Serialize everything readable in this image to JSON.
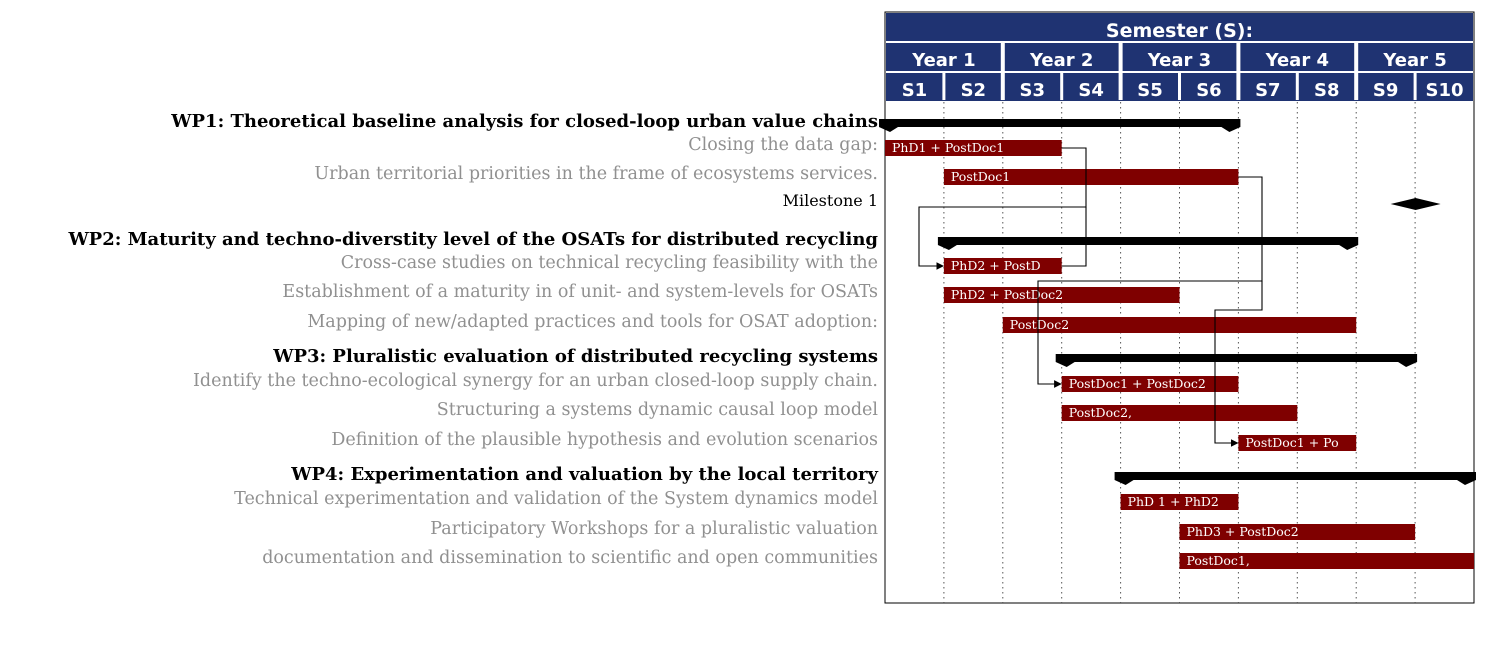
{
  "chart_data": {
    "type": "gantt",
    "title": "Semester (S):",
    "years": [
      "Year 1",
      "Year 2",
      "Year 3",
      "Year 4",
      "Year 5"
    ],
    "semesters": [
      "S1",
      "S2",
      "S3",
      "S4",
      "S5",
      "S6",
      "S7",
      "S8",
      "S9",
      "S10"
    ],
    "rows": [
      {
        "kind": "group",
        "label": "WP1: Theoretical baseline analysis for closed-loop urban value chains",
        "start": 1,
        "end": 6
      },
      {
        "kind": "task",
        "label": "Closing the data gap:",
        "start": 1,
        "end": 3,
        "bar_text": "PhD1 + PostDoc1"
      },
      {
        "kind": "task",
        "label": "Urban territorial priorities in the frame of ecosystems services.",
        "start": 2,
        "end": 6,
        "bar_text": "PostDoc1"
      },
      {
        "kind": "milestone",
        "label": "Milestone 1",
        "at": 10
      },
      {
        "kind": "group",
        "label": "WP2: Maturity and techno-diverstity level of the OSATs for distributed recycling",
        "start": 2,
        "end": 8
      },
      {
        "kind": "task",
        "label": "Cross-case studies on technical recycling feasibility with the",
        "start": 2,
        "end": 3,
        "bar_text": "PhD2 + PostD"
      },
      {
        "kind": "task",
        "label": "Establishment of a maturity in of unit- and system-levels for OSATs",
        "start": 2,
        "end": 5,
        "bar_text": "PhD2 + PostDoc2"
      },
      {
        "kind": "task",
        "label": "Mapping of new/adapted practices and tools for OSAT adoption:",
        "start": 3,
        "end": 8,
        "bar_text": "PostDoc2"
      },
      {
        "kind": "group",
        "label": "WP3: Pluralistic evaluation of distributed recycling systems",
        "start": 4,
        "end": 9
      },
      {
        "kind": "task",
        "label": "Identify the techno-ecological synergy for an urban closed-loop supply chain.",
        "start": 4,
        "end": 6,
        "bar_text": "PostDoc1 + PostDoc2"
      },
      {
        "kind": "task",
        "label": "Structuring a systems dynamic causal loop model",
        "start": 4,
        "end": 7,
        "bar_text": "PostDoc2,"
      },
      {
        "kind": "task",
        "label": "Definition of the plausible hypothesis and evolution scenarios",
        "start": 7,
        "end": 8,
        "bar_text": "PostDoc1 + Po"
      },
      {
        "kind": "group",
        "label": "WP4: Experimentation and valuation by the local territory",
        "start": 5,
        "end": 10
      },
      {
        "kind": "task",
        "label": "Technical experimentation and validation of the System dynamics model",
        "start": 5,
        "end": 6,
        "bar_text": "PhD 1 + PhD2"
      },
      {
        "kind": "task",
        "label": "Participatory Workshops for a pluralistic valuation",
        "start": 6,
        "end": 9,
        "bar_text": "PhD3 + PostDoc2"
      },
      {
        "kind": "task",
        "label": "documentation and dissemination to scientific and open communities",
        "start": 6,
        "end": 10,
        "bar_text": "PostDoc1,"
      }
    ],
    "links": [
      {
        "from": 1,
        "to": 5
      },
      {
        "from": 2,
        "to": 9
      },
      {
        "from": 6,
        "to": 11
      }
    ],
    "grid": "dotted vertical per semester"
  },
  "colors": {
    "header": "#1f3372",
    "task_bar": "#7f0000",
    "group_bar": "#000000",
    "task_label": "#909090"
  }
}
